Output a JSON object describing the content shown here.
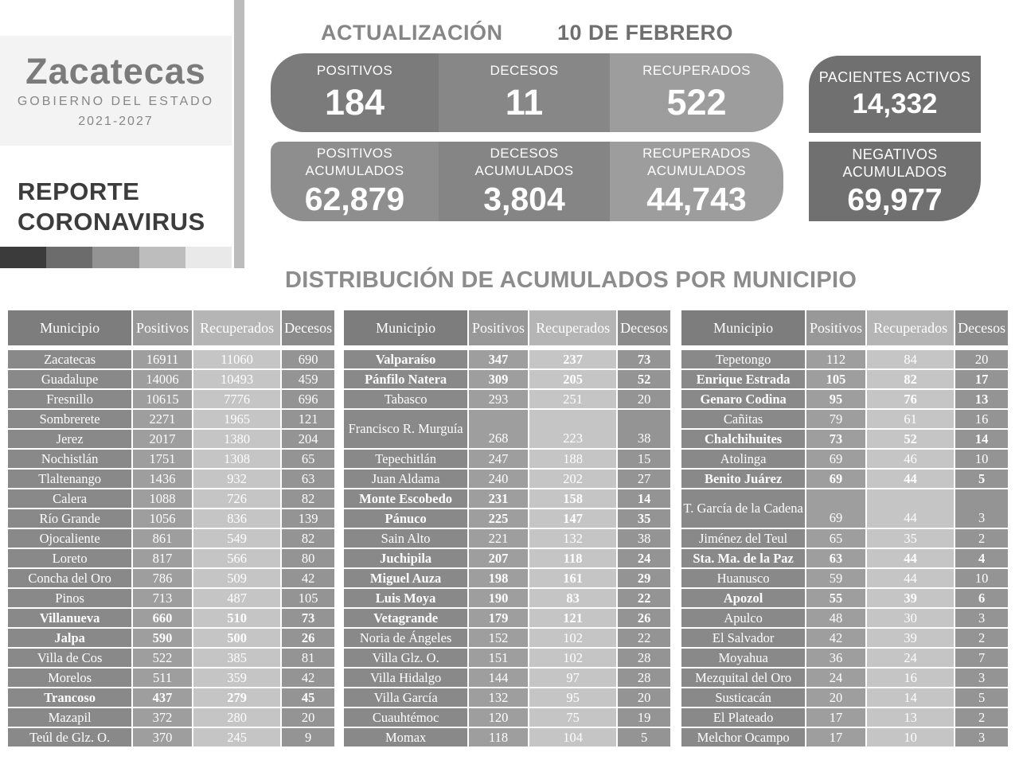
{
  "brand": {
    "name": "Zacatecas",
    "subtitle": "GOBIERNO DEL ESTADO",
    "period": "2021-2027",
    "report_line1": "REPORTE",
    "report_line2": "CORONAVIRUS"
  },
  "header": {
    "update_label": "ACTUALIZACIÓN",
    "update_date": "10 DE FEBRERO"
  },
  "daily_stats": [
    {
      "label": "POSITIVOS",
      "value": "184"
    },
    {
      "label": "DECESOS",
      "value": "11"
    },
    {
      "label": "RECUPERADOS",
      "value": "522"
    }
  ],
  "active_patients": {
    "label": "PACIENTES ACTIVOS",
    "value": "14,332"
  },
  "cumulative_stats": [
    {
      "label_line1": "POSITIVOS",
      "label_line2": "ACUMULADOS",
      "value": "62,879"
    },
    {
      "label_line1": "DECESOS",
      "label_line2": "ACUMULADOS",
      "value": "3,804"
    },
    {
      "label_line1": "RECUPERADOS",
      "label_line2": "ACUMULADOS",
      "value": "44,743"
    }
  ],
  "negatives": {
    "label_line1": "NEGATIVOS",
    "label_line2": "ACUMULADOS",
    "value": "69,977"
  },
  "section_title": "DISTRIBUCIÓN DE ACUMULADOS POR MUNICIPIO",
  "table_headers": [
    "Municipio",
    "Positivos",
    "Recuperados",
    "Decesos"
  ],
  "municipality_tables": [
    {
      "rows": [
        {
          "name": "Zacatecas",
          "positivos": "16911",
          "recuperados": "11060",
          "decesos": "690",
          "bold": false,
          "tall": false
        },
        {
          "name": "Guadalupe",
          "positivos": "14006",
          "recuperados": "10493",
          "decesos": "459",
          "bold": false,
          "tall": false
        },
        {
          "name": "Fresnillo",
          "positivos": "10615",
          "recuperados": "7776",
          "decesos": "696",
          "bold": false,
          "tall": false
        },
        {
          "name": "Sombrerete",
          "positivos": "2271",
          "recuperados": "1965",
          "decesos": "121",
          "bold": false,
          "tall": false
        },
        {
          "name": "Jerez",
          "positivos": "2017",
          "recuperados": "1380",
          "decesos": "204",
          "bold": false,
          "tall": false
        },
        {
          "name": "Nochistlán",
          "positivos": "1751",
          "recuperados": "1308",
          "decesos": "65",
          "bold": false,
          "tall": false
        },
        {
          "name": "Tlaltenango",
          "positivos": "1436",
          "recuperados": "932",
          "decesos": "63",
          "bold": false,
          "tall": false
        },
        {
          "name": "Calera",
          "positivos": "1088",
          "recuperados": "726",
          "decesos": "82",
          "bold": false,
          "tall": false
        },
        {
          "name": "Río Grande",
          "positivos": "1056",
          "recuperados": "836",
          "decesos": "139",
          "bold": false,
          "tall": false
        },
        {
          "name": "Ojocaliente",
          "positivos": "861",
          "recuperados": "549",
          "decesos": "82",
          "bold": false,
          "tall": false
        },
        {
          "name": "Loreto",
          "positivos": "817",
          "recuperados": "566",
          "decesos": "80",
          "bold": false,
          "tall": false
        },
        {
          "name": "Concha del Oro",
          "positivos": "786",
          "recuperados": "509",
          "decesos": "42",
          "bold": false,
          "tall": false
        },
        {
          "name": "Pinos",
          "positivos": "713",
          "recuperados": "487",
          "decesos": "105",
          "bold": false,
          "tall": false
        },
        {
          "name": "Villanueva",
          "positivos": "660",
          "recuperados": "510",
          "decesos": "73",
          "bold": true,
          "tall": false
        },
        {
          "name": "Jalpa",
          "positivos": "590",
          "recuperados": "500",
          "decesos": "26",
          "bold": true,
          "tall": false
        },
        {
          "name": "Villa de Cos",
          "positivos": "522",
          "recuperados": "385",
          "decesos": "81",
          "bold": false,
          "tall": false
        },
        {
          "name": "Morelos",
          "positivos": "511",
          "recuperados": "359",
          "decesos": "42",
          "bold": false,
          "tall": false
        },
        {
          "name": "Trancoso",
          "positivos": "437",
          "recuperados": "279",
          "decesos": "45",
          "bold": true,
          "tall": false
        },
        {
          "name": "Mazapil",
          "positivos": "372",
          "recuperados": "280",
          "decesos": "20",
          "bold": false,
          "tall": false
        },
        {
          "name": "Teúl de Glz. O.",
          "positivos": "370",
          "recuperados": "245",
          "decesos": "9",
          "bold": false,
          "tall": false
        }
      ]
    },
    {
      "rows": [
        {
          "name": "Valparaíso",
          "positivos": "347",
          "recuperados": "237",
          "decesos": "73",
          "bold": true,
          "tall": false
        },
        {
          "name": "Pánfilo Natera",
          "positivos": "309",
          "recuperados": "205",
          "decesos": "52",
          "bold": true,
          "tall": false
        },
        {
          "name": "Tabasco",
          "positivos": "293",
          "recuperados": "251",
          "decesos": "20",
          "bold": false,
          "tall": false
        },
        {
          "name": "Francisco R. Murguía",
          "positivos": "268",
          "recuperados": "223",
          "decesos": "38",
          "bold": false,
          "tall": true
        },
        {
          "name": "Tepechitlán",
          "positivos": "247",
          "recuperados": "188",
          "decesos": "15",
          "bold": false,
          "tall": false
        },
        {
          "name": "Juan Aldama",
          "positivos": "240",
          "recuperados": "202",
          "decesos": "27",
          "bold": false,
          "tall": false
        },
        {
          "name": "Monte Escobedo",
          "positivos": "231",
          "recuperados": "158",
          "decesos": "14",
          "bold": true,
          "tall": false
        },
        {
          "name": "Pánuco",
          "positivos": "225",
          "recuperados": "147",
          "decesos": "35",
          "bold": true,
          "tall": false
        },
        {
          "name": "Sain Alto",
          "positivos": "221",
          "recuperados": "132",
          "decesos": "38",
          "bold": false,
          "tall": false
        },
        {
          "name": "Juchipila",
          "positivos": "207",
          "recuperados": "118",
          "decesos": "24",
          "bold": true,
          "tall": false
        },
        {
          "name": "Miguel Auza",
          "positivos": "198",
          "recuperados": "161",
          "decesos": "29",
          "bold": true,
          "tall": false
        },
        {
          "name": "Luis Moya",
          "positivos": "190",
          "recuperados": "83",
          "decesos": "22",
          "bold": true,
          "tall": false
        },
        {
          "name": "Vetagrande",
          "positivos": "179",
          "recuperados": "121",
          "decesos": "26",
          "bold": true,
          "tall": false
        },
        {
          "name": "Noria de Ángeles",
          "positivos": "152",
          "recuperados": "102",
          "decesos": "22",
          "bold": false,
          "tall": false
        },
        {
          "name": "Villa Glz. O.",
          "positivos": "151",
          "recuperados": "102",
          "decesos": "28",
          "bold": false,
          "tall": false
        },
        {
          "name": "Villa Hidalgo",
          "positivos": "144",
          "recuperados": "97",
          "decesos": "28",
          "bold": false,
          "tall": false
        },
        {
          "name": "Villa García",
          "positivos": "132",
          "recuperados": "95",
          "decesos": "20",
          "bold": false,
          "tall": false
        },
        {
          "name": "Cuauhtémoc",
          "positivos": "120",
          "recuperados": "75",
          "decesos": "19",
          "bold": false,
          "tall": false
        },
        {
          "name": "Momax",
          "positivos": "118",
          "recuperados": "104",
          "decesos": "5",
          "bold": false,
          "tall": false
        }
      ]
    },
    {
      "rows": [
        {
          "name": "Tepetongo",
          "positivos": "112",
          "recuperados": "84",
          "decesos": "20",
          "bold": false,
          "tall": false
        },
        {
          "name": "Enrique Estrada",
          "positivos": "105",
          "recuperados": "82",
          "decesos": "17",
          "bold": true,
          "tall": false
        },
        {
          "name": "Genaro Codina",
          "positivos": "95",
          "recuperados": "76",
          "decesos": "13",
          "bold": true,
          "tall": false
        },
        {
          "name": "Cañitas",
          "positivos": "79",
          "recuperados": "61",
          "decesos": "16",
          "bold": false,
          "tall": false
        },
        {
          "name": "Chalchihuites",
          "positivos": "73",
          "recuperados": "52",
          "decesos": "14",
          "bold": true,
          "tall": false
        },
        {
          "name": "Atolinga",
          "positivos": "69",
          "recuperados": "46",
          "decesos": "10",
          "bold": false,
          "tall": false
        },
        {
          "name": "Benito Juárez",
          "positivos": "69",
          "recuperados": "44",
          "decesos": "5",
          "bold": true,
          "tall": false
        },
        {
          "name": "T. García de la Cadena",
          "positivos": "69",
          "recuperados": "44",
          "decesos": "3",
          "bold": false,
          "tall": true
        },
        {
          "name": "Jiménez del Teul",
          "positivos": "65",
          "recuperados": "35",
          "decesos": "2",
          "bold": false,
          "tall": false
        },
        {
          "name": "Sta. Ma. de la Paz",
          "positivos": "63",
          "recuperados": "44",
          "decesos": "4",
          "bold": true,
          "tall": false
        },
        {
          "name": "Huanusco",
          "positivos": "59",
          "recuperados": "44",
          "decesos": "10",
          "bold": false,
          "tall": false
        },
        {
          "name": "Apozol",
          "positivos": "55",
          "recuperados": "39",
          "decesos": "6",
          "bold": true,
          "tall": false
        },
        {
          "name": "Apulco",
          "positivos": "48",
          "recuperados": "30",
          "decesos": "3",
          "bold": false,
          "tall": false
        },
        {
          "name": "El Salvador",
          "positivos": "42",
          "recuperados": "39",
          "decesos": "2",
          "bold": false,
          "tall": false
        },
        {
          "name": "Moyahua",
          "positivos": "36",
          "recuperados": "24",
          "decesos": "7",
          "bold": false,
          "tall": false
        },
        {
          "name": "Mezquital del Oro",
          "positivos": "24",
          "recuperados": "16",
          "decesos": "3",
          "bold": false,
          "tall": false
        },
        {
          "name": "Susticacán",
          "positivos": "20",
          "recuperados": "14",
          "decesos": "5",
          "bold": false,
          "tall": false
        },
        {
          "name": "El Plateado",
          "positivos": "17",
          "recuperados": "13",
          "decesos": "2",
          "bold": false,
          "tall": false
        },
        {
          "name": "Melchor Ocampo",
          "positivos": "17",
          "recuperados": "10",
          "decesos": "3",
          "bold": false,
          "tall": false
        }
      ]
    }
  ],
  "palette": {
    "strip": [
      "#3b3b3b",
      "#6c6c6c",
      "#939393",
      "#bdbdbd",
      "#e9e9e9"
    ],
    "dark_box": "#707070",
    "table_header_cols": [
      "#7d7d7d",
      "#989898",
      "#b5b5b5",
      "#8b8b8b"
    ],
    "table_data_cols": [
      "#898989",
      "#9e9e9e",
      "#c5c5c5",
      "#949494"
    ]
  }
}
